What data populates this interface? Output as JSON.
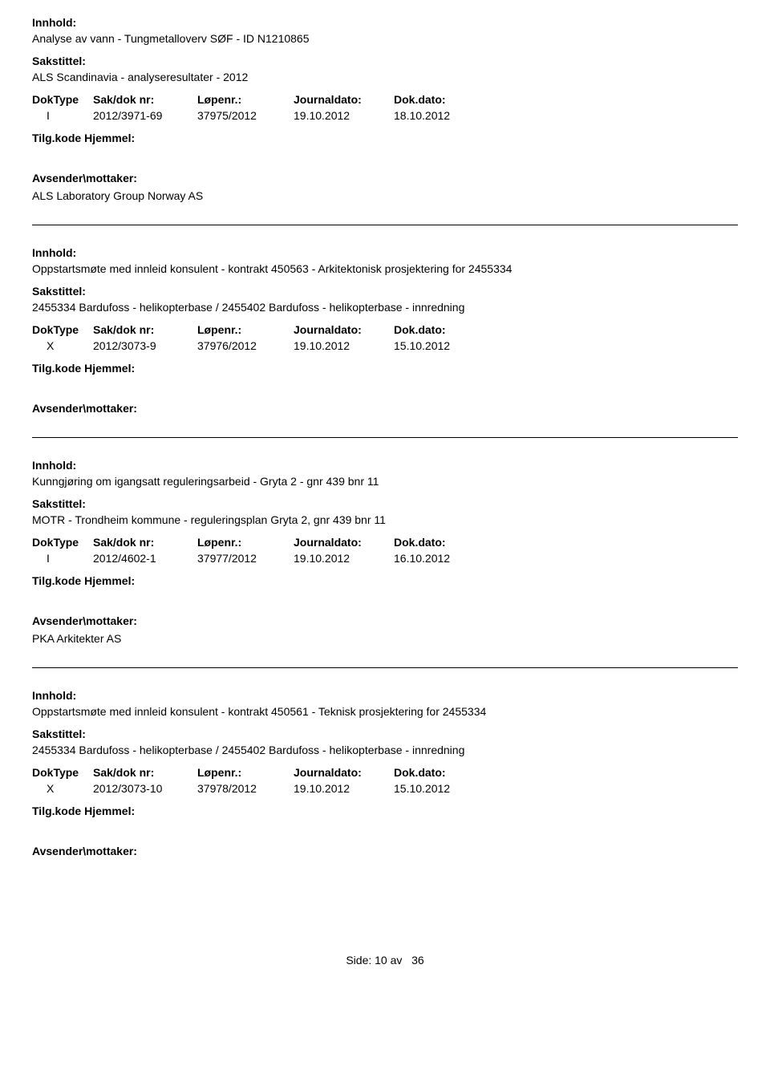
{
  "labels": {
    "innhold": "Innhold:",
    "sakstittel": "Sakstittel:",
    "doktype": "DokType",
    "saknr": "Sak/dok nr:",
    "lopenr": "Løpenr.:",
    "journaldato": "Journaldato:",
    "dokdato": "Dok.dato:",
    "tilgkode": "Tilg.kode",
    "hjemmel": "Hjemmel:",
    "avsender": "Avsender\\mottaker:"
  },
  "entries": [
    {
      "innhold": "Analyse av vann - Tungmetalloverv SØF - ID N1210865",
      "sakstittel": "ALS Scandinavia - analyseresultater - 2012",
      "doktype": "I",
      "saknr": "2012/3971-69",
      "lopenr": "37975/2012",
      "journaldato": "19.10.2012",
      "dokdato": "18.10.2012",
      "avsender": "ALS Laboratory Group Norway AS"
    },
    {
      "innhold": "Oppstartsmøte med innleid konsulent - kontrakt  450563 - Arkitektonisk prosjektering for 2455334",
      "sakstittel": "2455334 Bardufoss - helikopterbase / 2455402 Bardufoss - helikopterbase - innredning",
      "doktype": "X",
      "saknr": "2012/3073-9",
      "lopenr": "37976/2012",
      "journaldato": "19.10.2012",
      "dokdato": "15.10.2012",
      "avsender": ""
    },
    {
      "innhold": "Kunngjøring om igangsatt reguleringsarbeid - Gryta 2 - gnr 439 bnr 11",
      "sakstittel": "MOTR - Trondheim kommune - reguleringsplan Gryta 2, gnr 439 bnr 11",
      "doktype": "I",
      "saknr": "2012/4602-1",
      "lopenr": "37977/2012",
      "journaldato": "19.10.2012",
      "dokdato": "16.10.2012",
      "avsender": "PKA Arkitekter AS"
    },
    {
      "innhold": "Oppstartsmøte med innleid konsulent - kontrakt 450561 - Teknisk prosjektering for 2455334",
      "sakstittel": "2455334 Bardufoss - helikopterbase / 2455402 Bardufoss - helikopterbase - innredning",
      "doktype": "X",
      "saknr": "2012/3073-10",
      "lopenr": "37978/2012",
      "journaldato": "19.10.2012",
      "dokdato": "15.10.2012",
      "avsender": ""
    }
  ],
  "footer": {
    "side_label": "Side:",
    "page": "10",
    "av": "av",
    "total": "36"
  }
}
